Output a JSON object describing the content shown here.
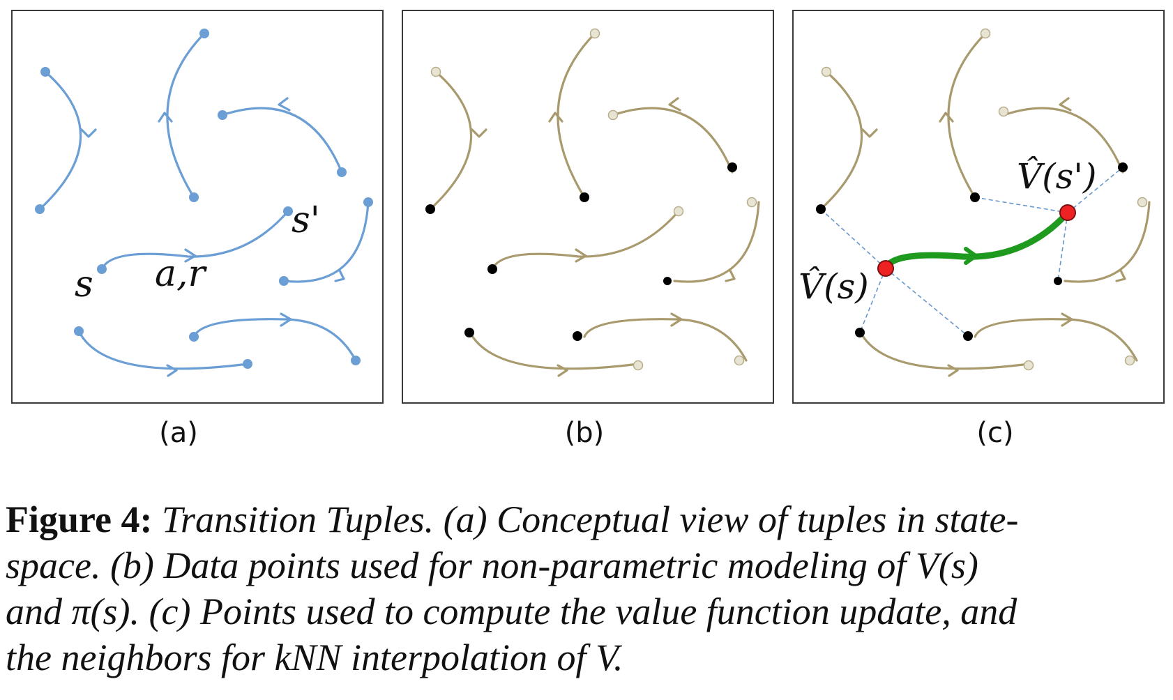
{
  "figure": {
    "panels": [
      {
        "id": "a",
        "label": "(a)"
      },
      {
        "id": "b",
        "label": "(b)"
      },
      {
        "id": "c",
        "label": "(c)"
      }
    ],
    "annotations": {
      "s": "s",
      "s_prime": "s'",
      "action_reward": "a,r",
      "v_hat_s": "V̂(s)",
      "v_hat_s_prime": "V̂(s')"
    },
    "colors": {
      "trajectory_a": "#6a9ed4",
      "trajectory_bc": "#a99a6e",
      "highlight_transition": "#1e9a1e",
      "query_point": "#ee2222",
      "neighbor_point": "#000000",
      "neighbor_link": "#6a98cc"
    }
  },
  "caption": {
    "label": "Figure 4:",
    "lines": [
      "Transition Tuples. (a) Conceptual view of tuples in state-",
      "space. (b) Data points used for non-parametric modeling of V(s)",
      "and π(s). (c) Points used to compute the value function update, and",
      "the neighbors for kNN interpolation of V."
    ]
  }
}
